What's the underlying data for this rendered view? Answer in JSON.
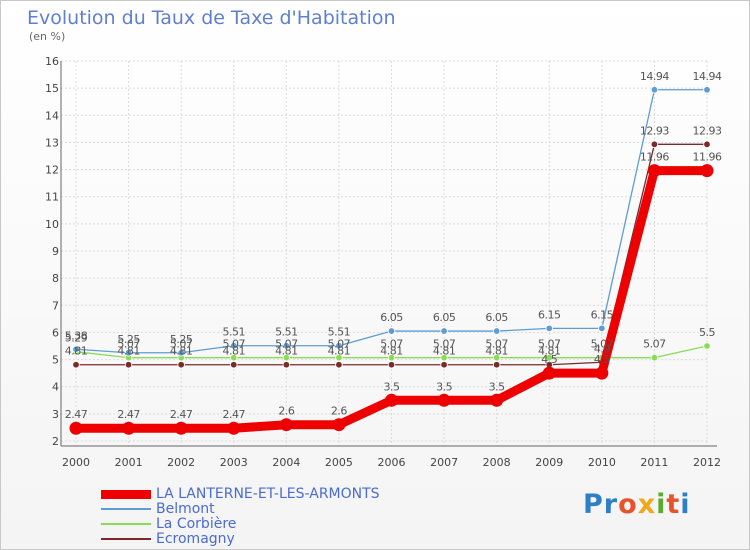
{
  "title": "Evolution du Taux de Taxe d'Habitation",
  "unit_label": "(en %)",
  "logo_text": "Proxiti",
  "logo_colors": [
    "#2f7fc8",
    "#2f7fc8",
    "#e8532c",
    "#f2a81d",
    "#5aaa2e",
    "#e8532c",
    "#2f7fc8"
  ],
  "chart_data": {
    "type": "line",
    "title": "Evolution du Taux de Taxe d'Habitation",
    "ylabel": "(en %)",
    "xlabel": "",
    "x": [
      "2000",
      "2001",
      "2002",
      "2003",
      "2004",
      "2005",
      "2006",
      "2007",
      "2008",
      "2009",
      "2010",
      "2011",
      "2012"
    ],
    "ylim": [
      2,
      16
    ],
    "yticks": [
      2,
      3,
      4,
      5,
      6,
      7,
      8,
      9,
      10,
      11,
      12,
      13,
      14,
      15,
      16
    ],
    "grid": true,
    "legend_position": "bottom-left",
    "series": [
      {
        "name": "LA LANTERNE-ET-LES-ARMONTS",
        "color": "#ee0000",
        "emphasis": "bold",
        "values": [
          2.47,
          2.47,
          2.47,
          2.47,
          2.6,
          2.6,
          3.5,
          3.5,
          3.5,
          4.5,
          4.5,
          11.96,
          11.96
        ],
        "labels": [
          "2.47",
          "2.47",
          "2.47",
          "2.47",
          "2.6",
          "2.6",
          "3.5",
          "3.5",
          "3.5",
          "4.5",
          "4.5",
          "11.96",
          "11.96"
        ]
      },
      {
        "name": "Belmont",
        "color": "#5e9cd3",
        "values": [
          5.38,
          5.25,
          5.25,
          5.51,
          5.51,
          5.51,
          6.05,
          6.05,
          6.05,
          6.15,
          6.15,
          14.94,
          14.94
        ],
        "labels": [
          "5.38",
          "5.25",
          "5.25",
          "5.51",
          "5.51",
          "5.51",
          "6.05",
          "6.05",
          "6.05",
          "6.15",
          "6.15",
          "14.94",
          "14.94"
        ]
      },
      {
        "name": "La Corbière",
        "color": "#88dd55",
        "values": [
          5.29,
          5.07,
          5.07,
          5.07,
          5.07,
          5.07,
          5.07,
          5.07,
          5.07,
          5.07,
          5.07,
          5.07,
          5.5
        ],
        "labels": [
          "5.29",
          "5.07",
          "5.07",
          "5.07",
          "5.07",
          "5.07",
          "5.07",
          "5.07",
          "5.07",
          "5.07",
          "5.07",
          "5.07",
          "5.5"
        ]
      },
      {
        "name": "Ecromagny",
        "color": "#7a2a2a",
        "values": [
          4.81,
          4.81,
          4.81,
          4.81,
          4.81,
          4.81,
          4.81,
          4.81,
          4.81,
          4.81,
          4.9,
          12.93,
          12.93
        ],
        "labels": [
          "4.81",
          "4.81",
          "4.81",
          "4.81",
          "4.81",
          "4.81",
          "4.81",
          "4.81",
          "4.81",
          "4.81",
          "4.9",
          "12.93",
          "12.93"
        ]
      }
    ]
  }
}
